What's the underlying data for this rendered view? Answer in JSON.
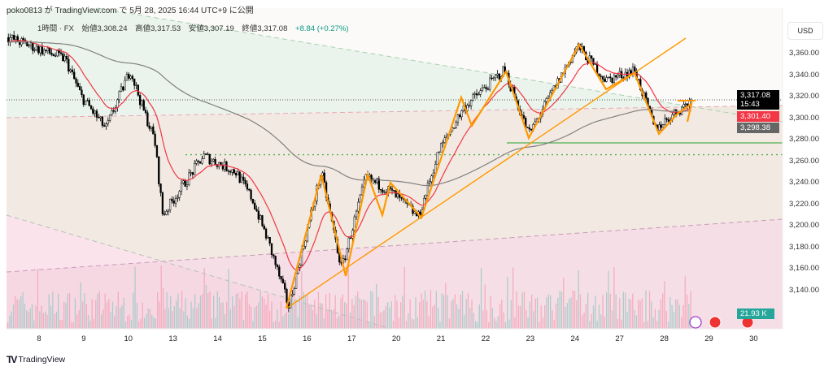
{
  "header": {
    "published": "poko0813 が TradingView.com で 5月 28, 2025 16:44 UTC+9 に公開"
  },
  "legend": {
    "interval": "1時間 · FX",
    "open": "始値3,308.24",
    "high": "高値3,317.53",
    "low": "安値3,307.19",
    "close": "終値3,317.08",
    "change": "+8.84 (+0.27%)"
  },
  "currency": "USD",
  "tags": {
    "last_price": "3,317.08",
    "countdown": "15:43",
    "ma_fast": "3,301.40",
    "ma_slow": "3,298.38",
    "volume": "21.93 K"
  },
  "colors": {
    "up": "#ffffff",
    "down": "#000000",
    "ma_fast": "#f23645",
    "ma_slow": "#808080",
    "drawing": "#ff9800",
    "support": "#4caf50",
    "volume_tag": "#26a69a"
  },
  "footer": {
    "logo_text": "TradingView"
  },
  "chart_data": {
    "type": "candlestick",
    "title": "1時間 · FX",
    "ylabel": "USD",
    "ylim": [
      3120,
      3385
    ],
    "y_ticks": [
      "3,360.00",
      "3,340.00",
      "3,320.00",
      "3,300.00",
      "3,280.00",
      "3,260.00",
      "3,240.00",
      "3,220.00",
      "3,200.00",
      "3,180.00",
      "3,160.00",
      "3,140.00"
    ],
    "y_tick_values": [
      3360,
      3340,
      3320,
      3300,
      3280,
      3260,
      3240,
      3220,
      3200,
      3180,
      3160,
      3140
    ],
    "x_ticks": [
      "8",
      "9",
      "10",
      "13",
      "14",
      "15",
      "16",
      "17",
      "20",
      "21",
      "22",
      "23",
      "24",
      "27",
      "28",
      "29",
      "30"
    ],
    "price_path": [
      [
        -0.68,
        3375
      ],
      [
        0.58,
        3355
      ],
      [
        0.94,
        3320
      ],
      [
        1.48,
        3290
      ],
      [
        2.02,
        3345
      ],
      [
        2.29,
        3310
      ],
      [
        2.56,
        3280
      ],
      [
        2.74,
        3210
      ],
      [
        3.64,
        3265
      ],
      [
        4.36,
        3250
      ],
      [
        4.72,
        3225
      ],
      [
        5.08,
        3185
      ],
      [
        5.53,
        3125
      ],
      [
        6.25,
        3250
      ],
      [
        6.7,
        3160
      ],
      [
        7.24,
        3245
      ],
      [
        7.78,
        3232
      ],
      [
        8.41,
        3208
      ],
      [
        8.86,
        3270
      ],
      [
        9.41,
        3310
      ],
      [
        10.31,
        3345
      ],
      [
        10.85,
        3285
      ],
      [
        11.93,
        3367
      ],
      [
        12.56,
        3335
      ],
      [
        13.19,
        3345
      ],
      [
        13.64,
        3290
      ],
      [
        14.45,
        3317
      ]
    ],
    "last_close": 3317.08,
    "ma_fast_last": 3301.4,
    "ma_slow_last": 3298.38,
    "support_levels": [
      3277,
      3266
    ],
    "volume_last": "21.93 K"
  }
}
